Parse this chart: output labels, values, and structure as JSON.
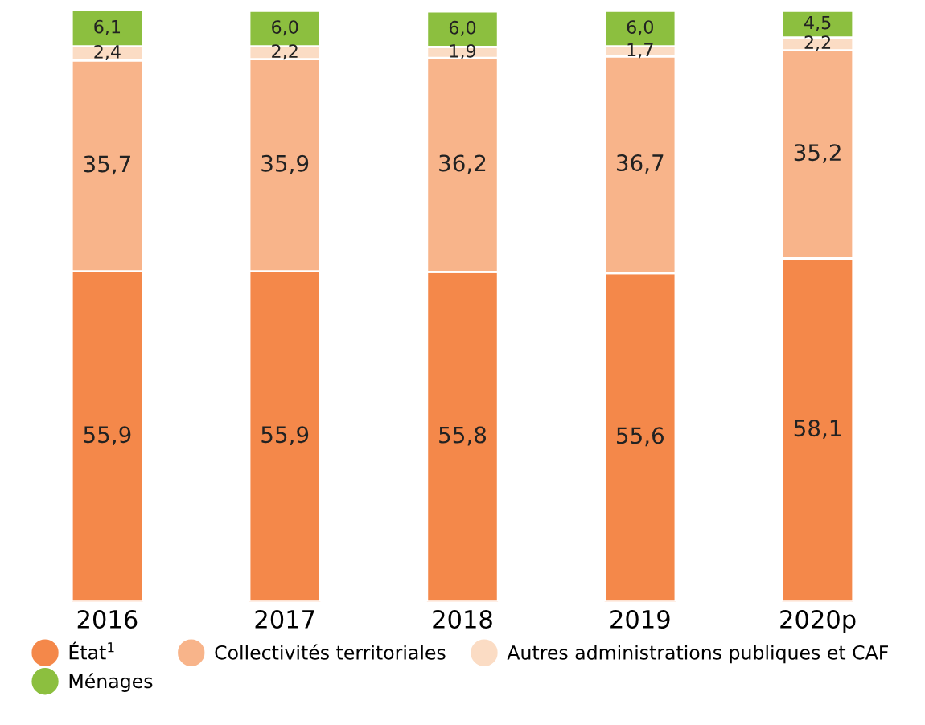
{
  "chart_data": {
    "type": "bar",
    "stacked": true,
    "categories": [
      "2016",
      "2017",
      "2018",
      "2019",
      "2020p"
    ],
    "series": [
      {
        "name": "État$^{1}$",
        "color": "#f4884a",
        "values": [
          55.9,
          55.9,
          55.8,
          55.6,
          58.1
        ],
        "value_labels": [
          "55,9",
          "55,9",
          "55,8",
          "55,6",
          "58,1"
        ]
      },
      {
        "name": "Collectivités territoriales",
        "color": "#f8b48a",
        "values": [
          35.7,
          35.9,
          36.2,
          36.7,
          35.2
        ],
        "value_labels": [
          "35,7",
          "35,9",
          "36,2",
          "36,7",
          "35,2"
        ]
      },
      {
        "name": "Autres administrations publiques et CAF",
        "color": "#fbdcc4",
        "values": [
          2.4,
          2.2,
          1.9,
          1.7,
          2.2
        ],
        "value_labels": [
          "2,4",
          "2,2",
          "1,9",
          "1,7",
          "2,2"
        ]
      },
      {
        "name": "Ménages",
        "color": "#8cbf3f",
        "values": [
          6.1,
          6.0,
          6.0,
          6.0,
          4.5
        ],
        "value_labels": [
          "6,1",
          "6,0",
          "6,0",
          "6,0",
          "4,5"
        ]
      }
    ],
    "tick_labels": "x",
    "legend": "bottom"
  }
}
